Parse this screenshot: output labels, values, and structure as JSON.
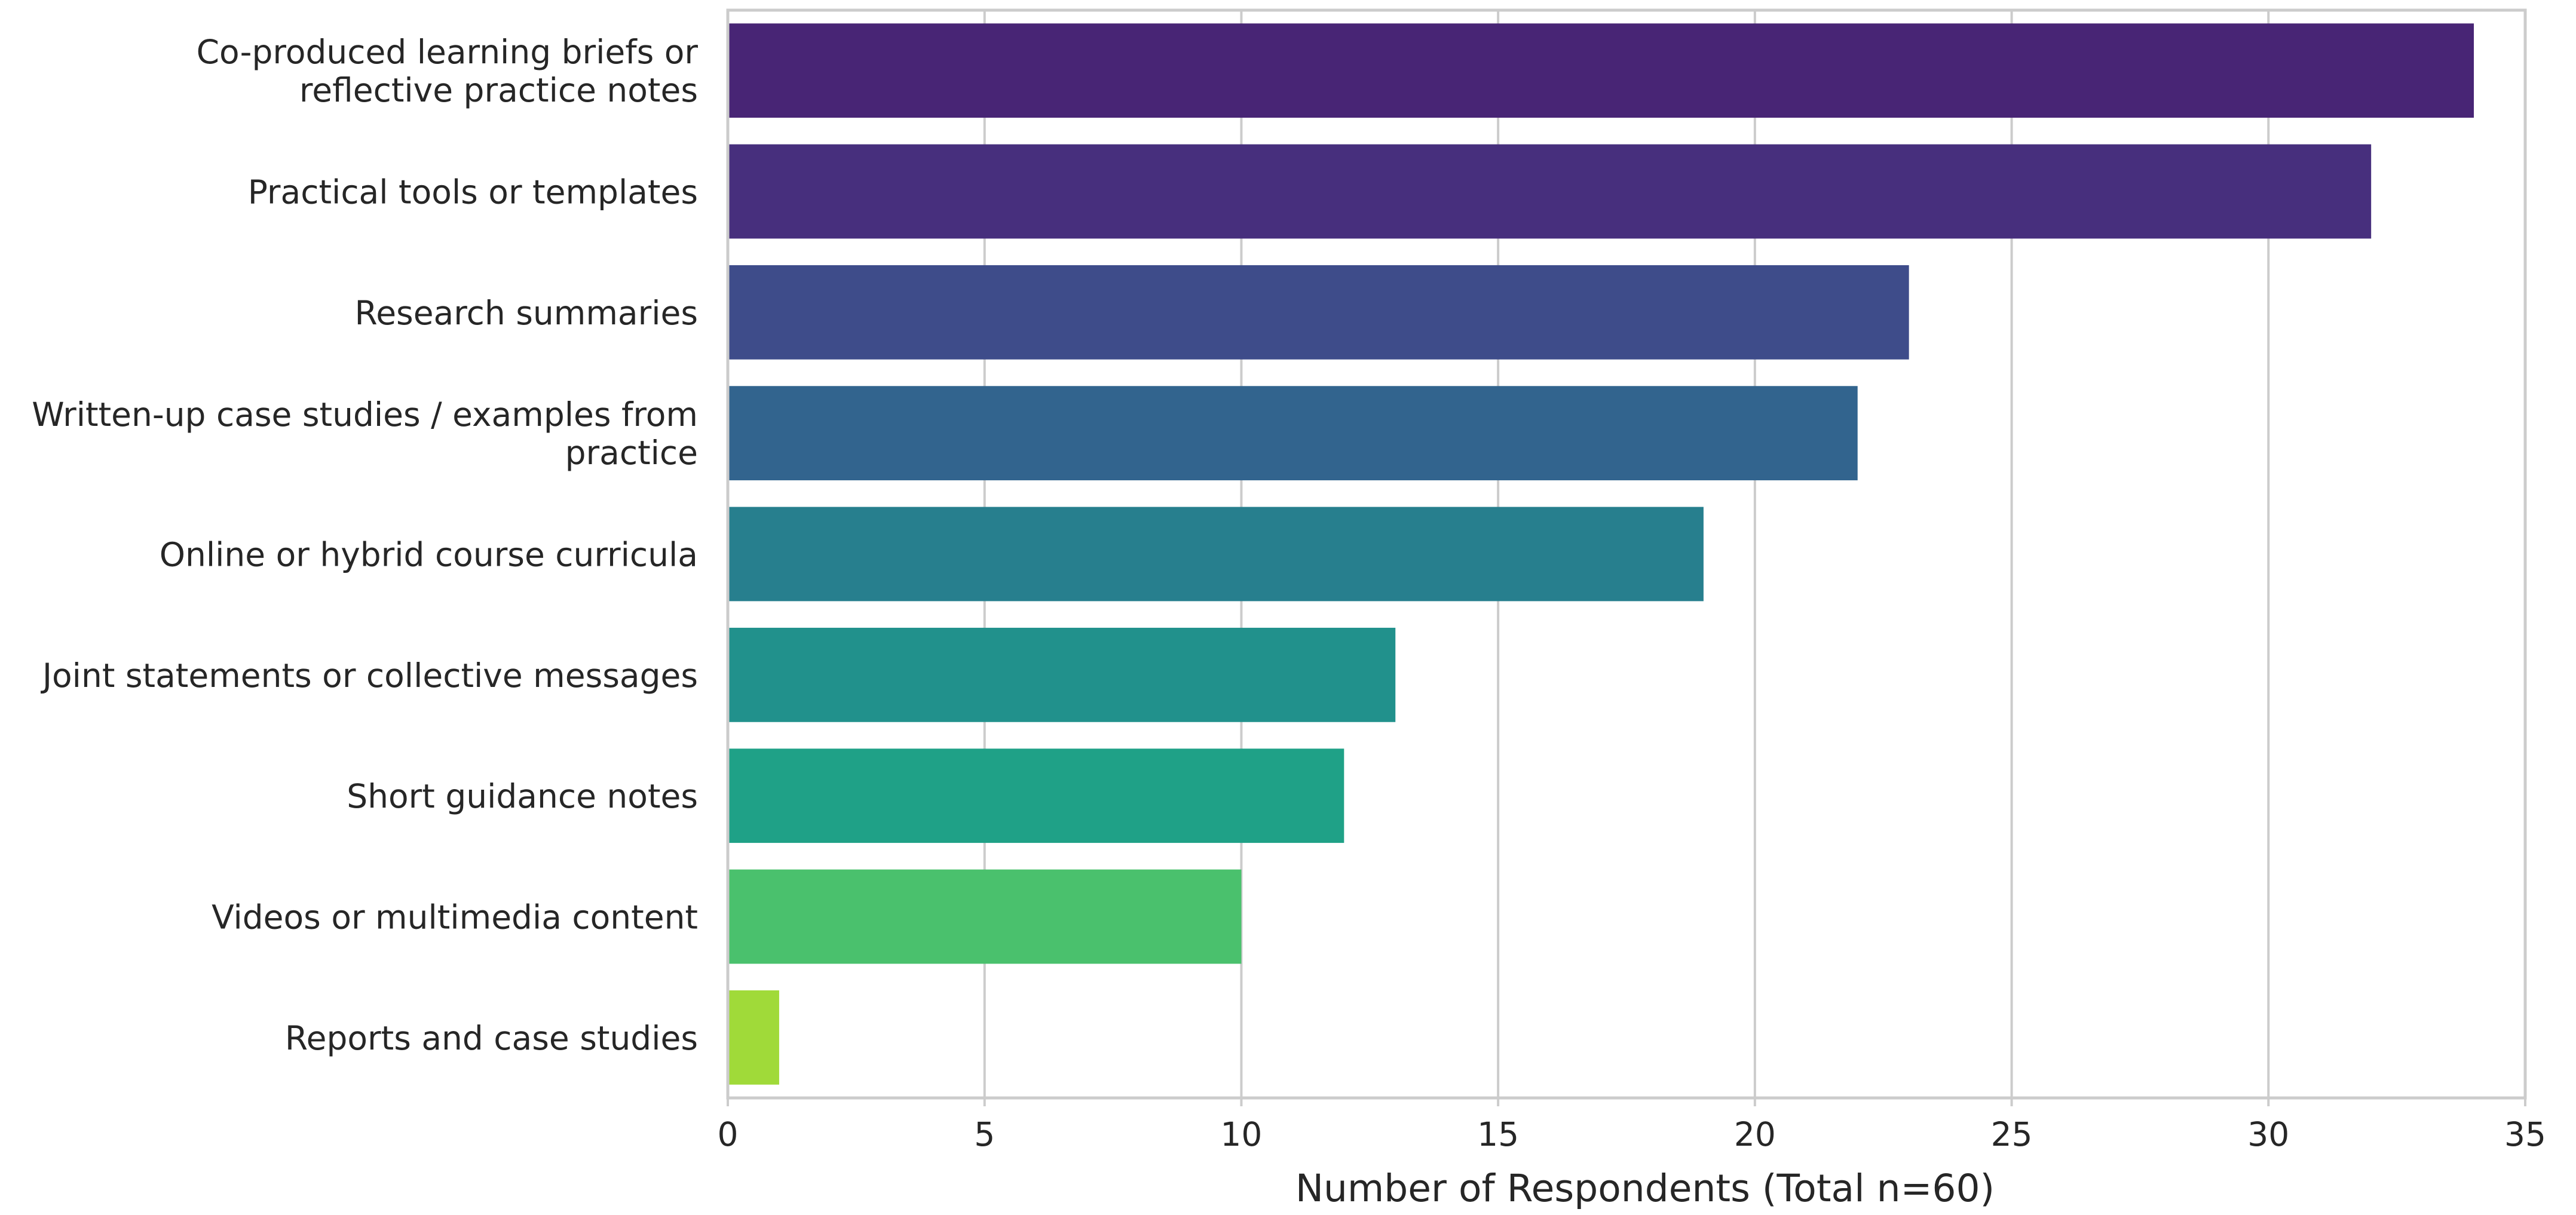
{
  "chart_data": {
    "type": "bar",
    "orientation": "horizontal",
    "categories": [
      [
        "Co-produced learning briefs or",
        "reflective practice notes"
      ],
      [
        "Practical tools or templates"
      ],
      [
        "Research summaries"
      ],
      [
        "Written-up case studies / examples from",
        "practice"
      ],
      [
        "Online or hybrid course curricula"
      ],
      [
        "Joint statements or collective messages"
      ],
      [
        "Short guidance notes"
      ],
      [
        "Videos or multimedia content"
      ],
      [
        "Reports and case studies"
      ]
    ],
    "values": [
      34,
      32,
      23,
      22,
      19,
      13,
      12,
      10,
      1
    ],
    "colors": [
      "#482575",
      "#472f7d",
      "#3e4c8a",
      "#32648e",
      "#277f8e",
      "#21918c",
      "#1fa187",
      "#4ac16d",
      "#a0da39"
    ],
    "title": "",
    "xlabel": "Number of Respondents (Total n=60)",
    "ylabel": "",
    "xlim": [
      0,
      35
    ],
    "xticks": [
      0,
      5,
      10,
      15,
      20,
      25,
      30,
      35
    ],
    "grid": "vertical",
    "legend": "none"
  }
}
